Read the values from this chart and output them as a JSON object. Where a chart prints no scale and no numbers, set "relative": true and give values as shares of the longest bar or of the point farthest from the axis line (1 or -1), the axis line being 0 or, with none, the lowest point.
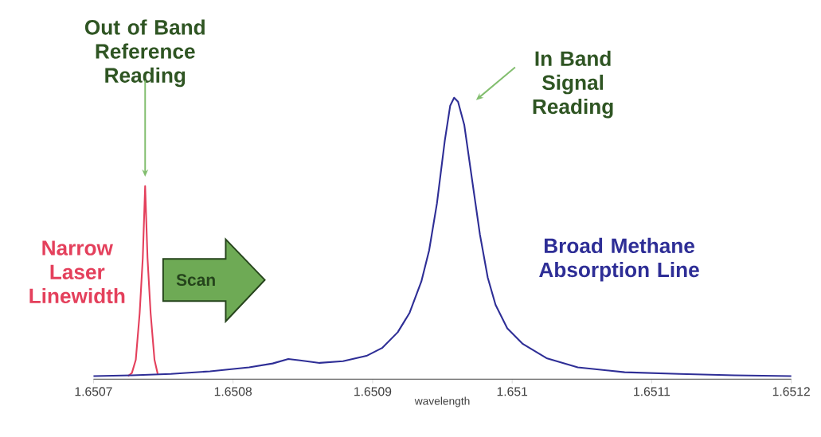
{
  "chart_data": {
    "type": "line",
    "relative": true,
    "xlabel": "wavelength",
    "xlim": [
      1.6507,
      1.6512
    ],
    "xticks": [
      1.6507,
      1.6508,
      1.6509,
      1.651,
      1.6511,
      1.6512
    ],
    "series": [
      {
        "name": "Narrow Laser Linewidth",
        "color": "#e4405c",
        "x": [
          1.6507247,
          1.6507275,
          1.6507303,
          1.6507331,
          1.6507353,
          1.650737,
          1.6507387,
          1.6507409,
          1.6507437,
          1.650746
        ],
        "values": [
          0.011,
          0.022,
          0.069,
          0.236,
          0.431,
          0.686,
          0.431,
          0.236,
          0.069,
          0.019
        ]
      },
      {
        "name": "Broad Methane Absorption Line",
        "color": "#2e2e96",
        "x": [
          1.6507,
          1.6507275,
          1.6507555,
          1.6507835,
          1.6508115,
          1.6508284,
          1.6508396,
          1.650848,
          1.650862,
          1.6508788,
          1.6508956,
          1.6509068,
          1.650918,
          1.6509265,
          1.6509349,
          1.6509405,
          1.6509461,
          1.6509517,
          1.6509556,
          1.6509584,
          1.6509612,
          1.6509657,
          1.6509713,
          1.6509769,
          1.6509825,
          1.6509881,
          1.6509965,
          1.6510077,
          1.6510246,
          1.651047,
          1.6510806,
          1.6511198,
          1.6511591,
          1.6512
        ],
        "values": [
          0.011,
          0.014,
          0.019,
          0.028,
          0.042,
          0.056,
          0.072,
          0.067,
          0.058,
          0.064,
          0.083,
          0.111,
          0.167,
          0.236,
          0.347,
          0.458,
          0.625,
          0.847,
          0.972,
          1.0,
          0.986,
          0.903,
          0.708,
          0.514,
          0.361,
          0.264,
          0.181,
          0.125,
          0.075,
          0.042,
          0.025,
          0.019,
          0.014,
          0.011
        ]
      }
    ],
    "annotations": [
      "Out of Band Reference Reading",
      "In Band Signal Reading",
      "Scan"
    ]
  }
}
